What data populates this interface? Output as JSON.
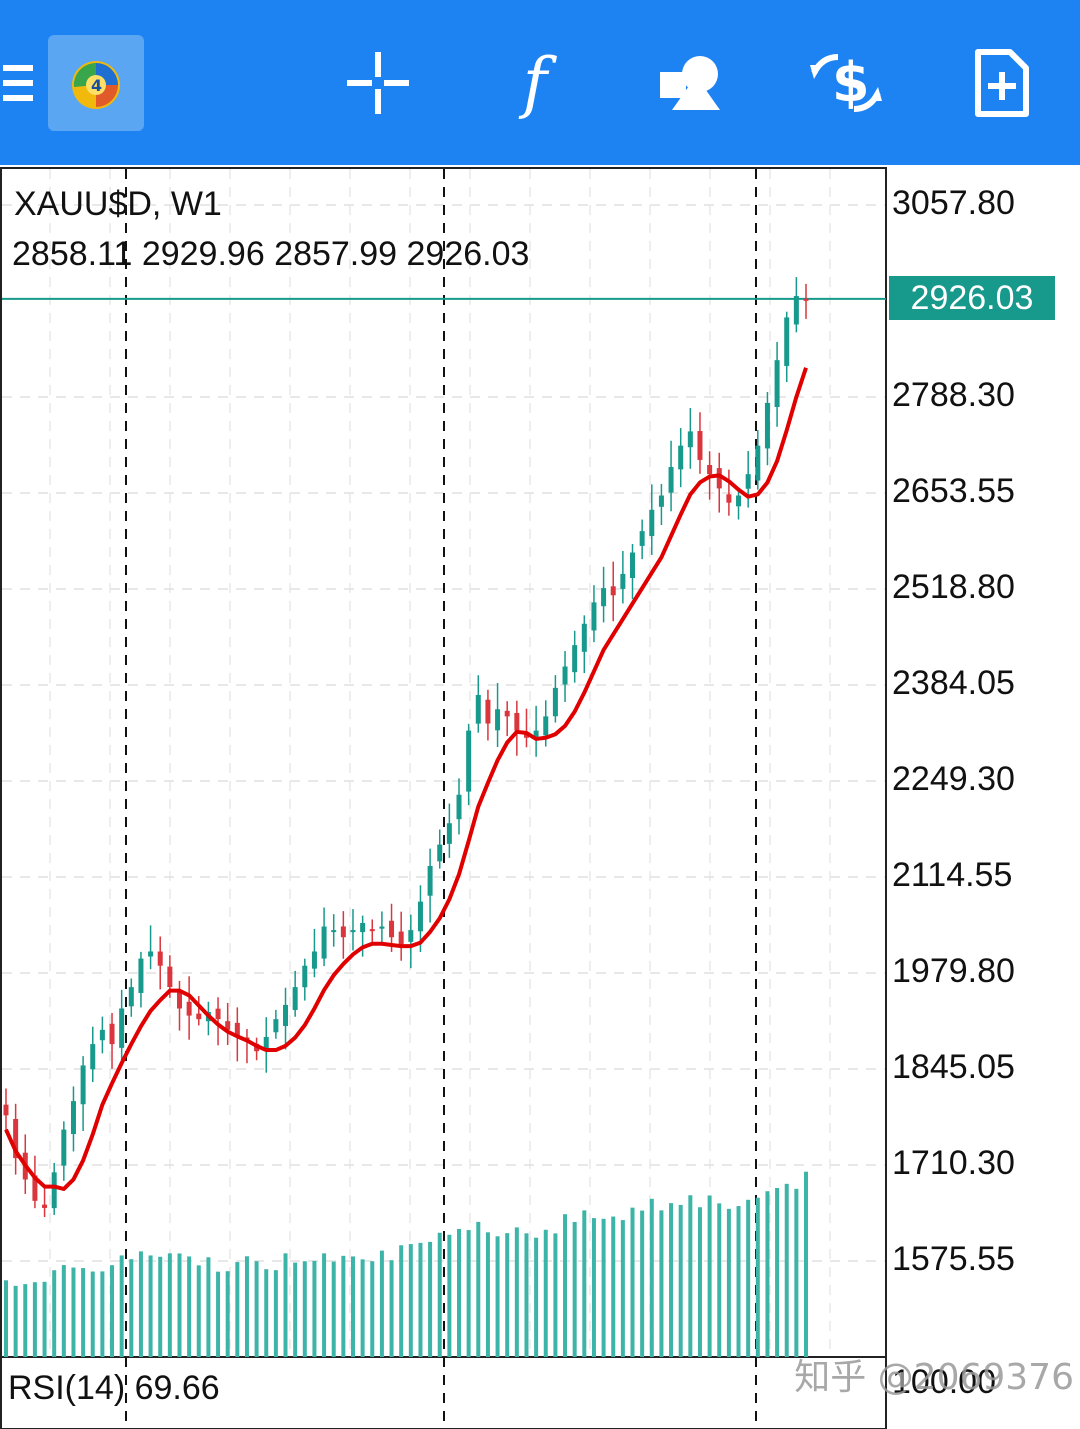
{
  "toolbar": {
    "icons": [
      "menu-icon",
      "metatrader-logo",
      "crosshair-icon",
      "indicators-icon",
      "objects-icon",
      "currency-exchange-icon",
      "new-order-icon"
    ],
    "indicator_glyph": "f",
    "color": "#1e83f2"
  },
  "chart": {
    "symbol_timeframe": "XAUU$D, W1",
    "ohlc": "2858.11 2929.96 2857.99 2926.03",
    "current_price_tag": "2926.03",
    "price_axis_labels": [
      "3057.80",
      "2788.30",
      "2653.55",
      "2518.80",
      "2384.05",
      "2249.30",
      "2114.55",
      "1979.80",
      "1845.05",
      "1710.30",
      "1575.55"
    ],
    "rsi_label": "RSI(14) 69.66",
    "rsi_axis_label": "100.00",
    "watermark": "知乎 @2069376",
    "colors": {
      "bull": "#17998c",
      "bear": "#d9363e",
      "ma": "#e00000",
      "volume": "#3db4a8",
      "price_line": "#17998c"
    }
  },
  "chart_data": {
    "type": "candlestick",
    "symbol": "XAUU$D",
    "timeframe": "W1",
    "ylim": [
      1575.55,
      3057.8
    ],
    "last_price": 2926.03,
    "approx_close_path": [
      1780,
      1720,
      1690,
      1660,
      1650,
      1700,
      1760,
      1800,
      1850,
      1880,
      1900,
      1880,
      1930,
      1960,
      2000,
      2010,
      1990,
      1960,
      1930,
      1920,
      1915,
      1925,
      1915,
      1900,
      1890,
      1885,
      1870,
      1890,
      1915,
      1935,
      1960,
      1990,
      2010,
      2045,
      2040,
      2030,
      2040,
      2050,
      2040,
      2045,
      2030,
      2020,
      2040,
      2080,
      2130,
      2160,
      2190,
      2230,
      2320,
      2370,
      2330,
      2350,
      2340,
      2320,
      2310,
      2320,
      2340,
      2380,
      2410,
      2440,
      2470,
      2500,
      2520,
      2510,
      2540,
      2570,
      2600,
      2630,
      2650,
      2690,
      2720,
      2740,
      2700,
      2680,
      2660,
      2640,
      2650,
      2680,
      2720,
      2780,
      2840,
      2900,
      2930,
      2926.03
    ]
  }
}
